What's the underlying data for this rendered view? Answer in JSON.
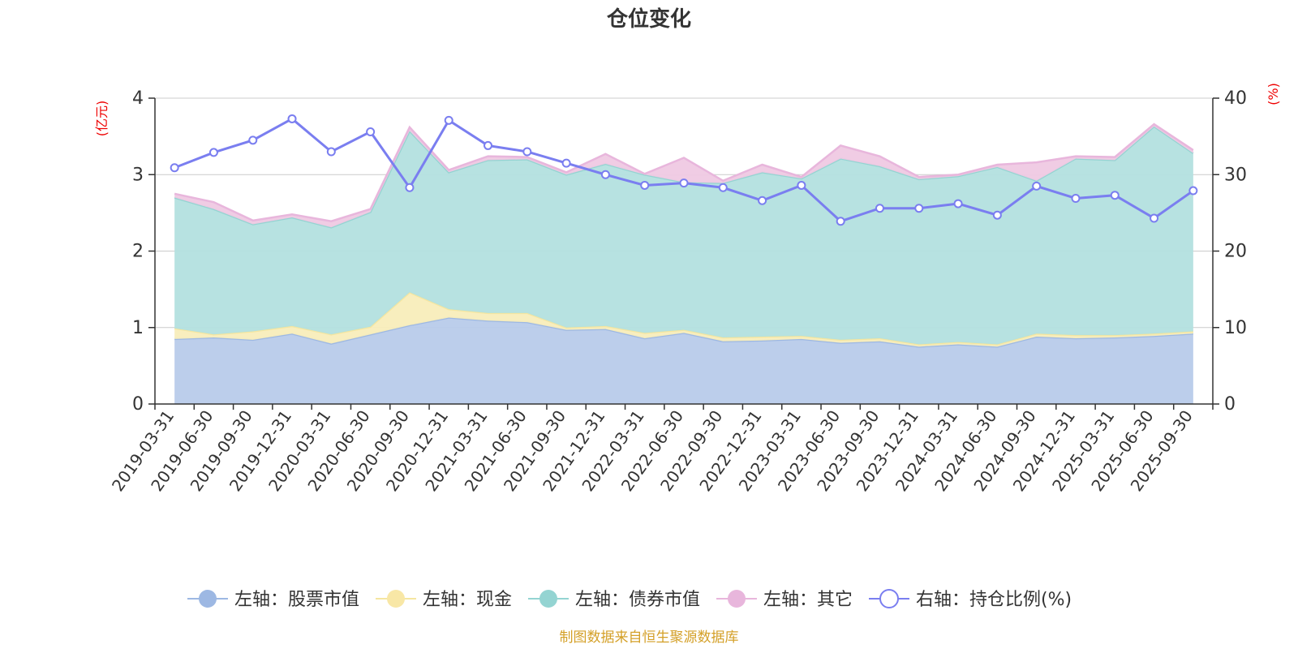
{
  "chart_data": {
    "type": "area",
    "title": "仓位变化",
    "left_axis": {
      "unit": "(亿元)",
      "range": [
        0,
        4
      ],
      "ticks": [
        "0",
        "1",
        "2",
        "3",
        "4"
      ]
    },
    "right_axis": {
      "unit": "(%)",
      "range": [
        0,
        40
      ],
      "ticks": [
        "0",
        "10",
        "20",
        "30",
        "40"
      ]
    },
    "x": [
      "2019-03-31",
      "2019-06-30",
      "2019-09-30",
      "2019-12-31",
      "2020-03-31",
      "2020-06-30",
      "2020-09-30",
      "2020-12-31",
      "2021-03-31",
      "2021-06-30",
      "2021-09-30",
      "2021-12-31",
      "2022-03-31",
      "2022-06-30",
      "2022-09-30",
      "2022-12-31",
      "2023-03-31",
      "2023-06-30",
      "2023-09-30",
      "2023-12-31",
      "2024-03-31",
      "2024-06-30",
      "2024-09-30",
      "2024-12-31",
      "2025-03-31",
      "2025-06-30",
      "2025-09-30"
    ],
    "series": [
      {
        "name": "左轴：股票市值",
        "axis": "left",
        "stack": true,
        "color": "#9db8e3",
        "fill": "#b8cbea",
        "values": [
          0.85,
          0.87,
          0.84,
          0.92,
          0.79,
          0.91,
          1.03,
          1.13,
          1.09,
          1.07,
          0.97,
          0.98,
          0.86,
          0.93,
          0.82,
          0.83,
          0.85,
          0.8,
          0.82,
          0.75,
          0.78,
          0.75,
          0.88,
          0.86,
          0.87,
          0.89,
          0.92
        ]
      },
      {
        "name": "左轴：现金",
        "axis": "left",
        "stack": true,
        "color": "#f5e6a0",
        "fill": "#f8edbb",
        "values": [
          0.14,
          0.04,
          0.11,
          0.1,
          0.12,
          0.1,
          0.43,
          0.11,
          0.1,
          0.12,
          0.03,
          0.04,
          0.07,
          0.04,
          0.05,
          0.05,
          0.04,
          0.04,
          0.04,
          0.03,
          0.03,
          0.03,
          0.04,
          0.04,
          0.03,
          0.03,
          0.03
        ]
      },
      {
        "name": "左轴：债券市值",
        "axis": "left",
        "stack": true,
        "color": "#94d4d2",
        "fill": "#b3e0df",
        "values": [
          1.71,
          1.64,
          1.4,
          1.42,
          1.4,
          1.5,
          2.11,
          1.79,
          2.0,
          2.01,
          2.0,
          2.12,
          2.07,
          1.93,
          2.02,
          2.15,
          2.06,
          2.37,
          2.25,
          2.16,
          2.17,
          2.32,
          2.0,
          2.31,
          2.29,
          2.71,
          2.33
        ]
      },
      {
        "name": "左轴：其它",
        "axis": "left",
        "stack": true,
        "color": "#e8b6dc",
        "fill": "#efc9e3",
        "values": [
          0.05,
          0.09,
          0.05,
          0.04,
          0.08,
          0.04,
          0.05,
          0.03,
          0.05,
          0.03,
          0.03,
          0.13,
          0.01,
          0.32,
          0.03,
          0.1,
          0.02,
          0.17,
          0.13,
          0.03,
          0.02,
          0.03,
          0.24,
          0.03,
          0.04,
          0.03,
          0.04
        ]
      },
      {
        "name": "右轴：持仓比例(%)",
        "axis": "right",
        "type": "line",
        "color": "#7a7ef0",
        "values": [
          30.9,
          32.9,
          34.5,
          37.3,
          33.0,
          35.6,
          28.3,
          37.1,
          33.8,
          33.0,
          31.5,
          30.0,
          28.6,
          28.9,
          28.3,
          26.6,
          28.6,
          23.9,
          25.6,
          25.6,
          26.2,
          24.7,
          28.5,
          26.9,
          27.3,
          24.3,
          27.9
        ]
      }
    ],
    "legend_position": "bottom-center",
    "grid": true,
    "source": "制图数据来自恒生聚源数据库"
  }
}
